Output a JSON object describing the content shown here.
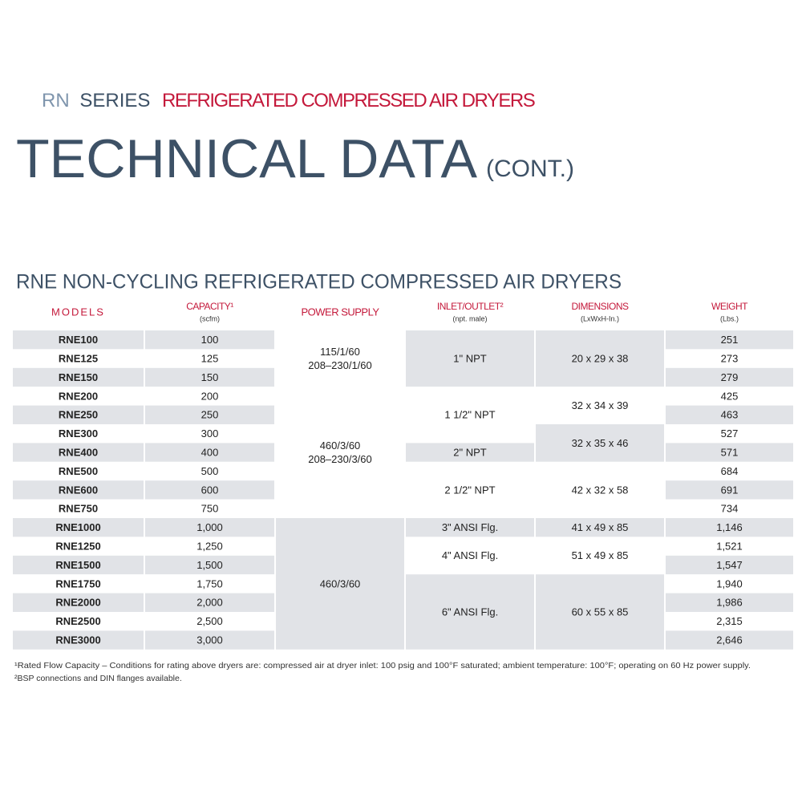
{
  "header": {
    "series": "RN",
    "series_word": "SERIES",
    "subtitle": "REFRIGERATED COMPRESSED AIR DRYERS",
    "title": "TECHNICAL DATA",
    "title_suffix": "(CONT.)"
  },
  "table": {
    "title": "RNE NON-CYCLING REFRIGERATED COMPRESSED AIR DRYERS",
    "columns": [
      {
        "title": "MODELS"
      },
      {
        "title": "CAPACITY¹",
        "unit": "(scfm)"
      },
      {
        "title": "POWER SUPPLY"
      },
      {
        "title": "INLET/OUTLET²",
        "unit": "(npt. male)"
      },
      {
        "title": "DIMENSIONS",
        "unit": "(LxWxH-In.)"
      },
      {
        "title": "WEIGHT",
        "unit": "(Lbs.)"
      }
    ],
    "rows": [
      [
        "RNE100",
        "100",
        "251"
      ],
      [
        "RNE125",
        "125",
        "273"
      ],
      [
        "RNE150",
        "150",
        "279"
      ],
      [
        "RNE200",
        "200",
        "425"
      ],
      [
        "RNE250",
        "250",
        "463"
      ],
      [
        "RNE300",
        "300",
        "527"
      ],
      [
        "RNE400",
        "400",
        "571"
      ],
      [
        "RNE500",
        "500",
        "684"
      ],
      [
        "RNE600",
        "600",
        "691"
      ],
      [
        "RNE750",
        "750",
        "734"
      ],
      [
        "RNE1000",
        "1,000",
        "1,146"
      ],
      [
        "RNE1250",
        "1,250",
        "1,521"
      ],
      [
        "RNE1500",
        "1,500",
        "1,547"
      ],
      [
        "RNE1750",
        "1,750",
        "1,940"
      ],
      [
        "RNE2000",
        "2,000",
        "1,986"
      ],
      [
        "RNE2500",
        "2,500",
        "2,315"
      ],
      [
        "RNE3000",
        "3,000",
        "2,646"
      ]
    ],
    "power_supply": [
      [
        "115/1/60",
        "208–230/1/60"
      ],
      [
        "460/3/60",
        "208–230/3/60"
      ],
      [
        "460/3/60"
      ]
    ],
    "inlet_outlet": [
      "1\" NPT",
      "1 1/2\" NPT",
      "2\" NPT",
      "2 1/2\" NPT",
      "3\" ANSI Flg.",
      "4\" ANSI Flg.",
      "6\" ANSI Flg."
    ],
    "dimensions": [
      "20 x 29 x 38",
      "32 x 34 x 39",
      "32 x 35 x 46",
      "42 x 32 x 58",
      "41 x 49 x 85",
      "51 x 49 x 85",
      "60 x 55 x 85"
    ]
  },
  "footnotes": [
    "¹Rated Flow Capacity – Conditions for rating above dryers are: compressed air at dryer inlet: 100 psig and 100°F saturated; ambient temperature: 100°F; operating on 60 Hz power supply.",
    "²BSP connections and DIN flanges available."
  ]
}
